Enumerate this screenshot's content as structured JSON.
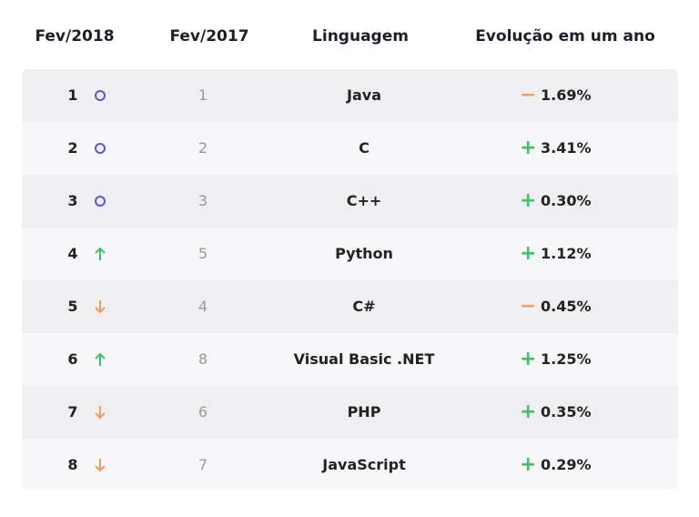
{
  "table": {
    "headers": [
      "Fev/2018",
      "Fev/2017",
      "Linguagem",
      "Evolução em um ano"
    ],
    "rows": [
      {
        "rank_2018": "1",
        "movement": "same",
        "rank_2017": "1",
        "language": "Java",
        "sign": "−",
        "change": "1.69%"
      },
      {
        "rank_2018": "2",
        "movement": "same",
        "rank_2017": "2",
        "language": "C",
        "sign": "+",
        "change": "3.41%"
      },
      {
        "rank_2018": "3",
        "movement": "same",
        "rank_2017": "3",
        "language": "C++",
        "sign": "+",
        "change": "0.30%"
      },
      {
        "rank_2018": "4",
        "movement": "up",
        "rank_2017": "5",
        "language": "Python",
        "sign": "+",
        "change": "1.12%"
      },
      {
        "rank_2018": "5",
        "movement": "down",
        "rank_2017": "4",
        "language": "C#",
        "sign": "−",
        "change": "0.45%"
      },
      {
        "rank_2018": "6",
        "movement": "up",
        "rank_2017": "8",
        "language": "Visual Basic .NET",
        "sign": "+",
        "change": "1.25%"
      },
      {
        "rank_2018": "7",
        "movement": "down",
        "rank_2017": "6",
        "language": "PHP",
        "sign": "+",
        "change": "0.35%"
      },
      {
        "rank_2018": "8",
        "movement": "down",
        "rank_2017": "7",
        "language": "JavaScript",
        "sign": "+",
        "change": "0.29%"
      }
    ]
  }
}
